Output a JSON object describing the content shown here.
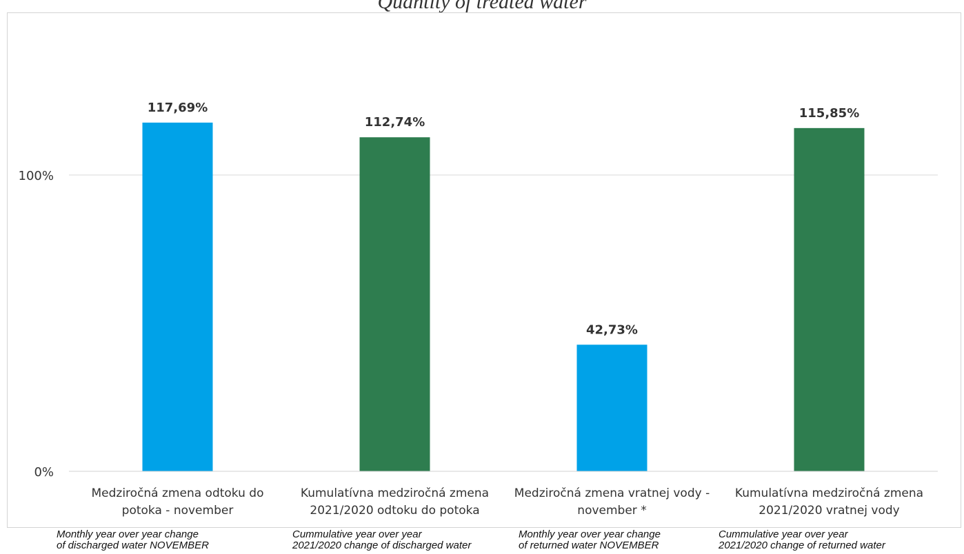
{
  "chart_data": {
    "type": "bar",
    "title": "Quantity of treated water",
    "categories": [
      "Medziročná zmena odtoku do potoka - november",
      "Kumulatívna medziročná zmena 2021/2020 odtoku do potoka",
      "Medziročná zmena vratnej vody - november *",
      "Kumulatívna medziročná zmena 2021/2020 vratnej vody"
    ],
    "category_lines": [
      [
        "Medziročná zmena odtoku do",
        "potoka - november"
      ],
      [
        "Kumulatívna medziročná zmena",
        "2021/2020 odtoku do potoka"
      ],
      [
        "Medziročná zmena vratnej vody -",
        "november *"
      ],
      [
        "Kumulatívna medziročná zmena",
        "2021/2020 vratnej vody"
      ]
    ],
    "values": [
      117.69,
      112.74,
      42.73,
      115.85
    ],
    "value_labels": [
      "117,69%",
      "112,74%",
      "42,73%",
      "115,85%"
    ],
    "bar_colors": [
      "#00a2e8",
      "#2e7d4f",
      "#00a2e8",
      "#2e7d4f"
    ],
    "yticks": [
      0,
      100
    ],
    "ytick_labels": [
      "0%",
      "100%"
    ],
    "ylim": [
      0,
      134
    ],
    "grid": true,
    "xlabel": "",
    "ylabel": ""
  },
  "translations": [
    "Monthly year over year change\nof discharged water NOVEMBER",
    "Cummulative year over year\n2021/2020 change of discharged water",
    "Monthly year over year change\nof returned water NOVEMBER",
    "Cummulative year over year\n2021/2020 change of returned water"
  ]
}
